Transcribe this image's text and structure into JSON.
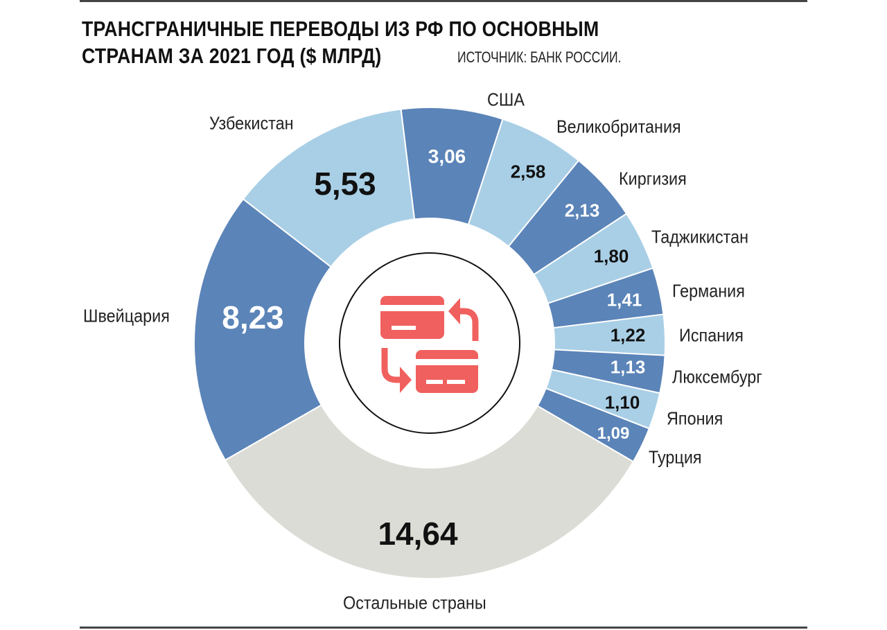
{
  "chart_data": {
    "type": "pie",
    "donut": true,
    "title": "ТРАНСГРАНИЧНЫЕ ПЕРЕВОДЫ ИЗ РФ ПО ОСНОВНЫМ СТРАНАМ ЗА 2021 ГОД ($ МЛРД)",
    "title_line1": "ТРАНСГРАНИЧНЫЕ ПЕРЕВОДЫ ИЗ РФ ПО ОСНОВНЫМ",
    "title_line2": "СТРАНАМ ЗА 2021 ГОД ($ МЛРД)",
    "source": "ИСТОЧНИК: БАНК РОССИИ.",
    "slices": [
      {
        "label": "США",
        "value": 3.06,
        "value_label": "3,06",
        "color": "#5b84b8"
      },
      {
        "label": "Великобритания",
        "value": 2.58,
        "value_label": "2,58",
        "color": "#a9cfe6"
      },
      {
        "label": "Киргизия",
        "value": 2.13,
        "value_label": "2,13",
        "color": "#5b84b8"
      },
      {
        "label": "Таджикистан",
        "value": 1.8,
        "value_label": "1,80",
        "color": "#a9cfe6"
      },
      {
        "label": "Германия",
        "value": 1.41,
        "value_label": "1,41",
        "color": "#5b84b8"
      },
      {
        "label": "Испания",
        "value": 1.22,
        "value_label": "1,22",
        "color": "#a9cfe6"
      },
      {
        "label": "Люксембург",
        "value": 1.13,
        "value_label": "1,13",
        "color": "#5b84b8"
      },
      {
        "label": "Япония",
        "value": 1.1,
        "value_label": "1,10",
        "color": "#a9cfe6"
      },
      {
        "label": "Турция",
        "value": 1.09,
        "value_label": "1,09",
        "color": "#5b84b8"
      },
      {
        "label": "Остальные страны",
        "value": 14.64,
        "value_label": "14,64",
        "color": "#dcdcd6"
      },
      {
        "label": "Швейцария",
        "value": 8.23,
        "value_label": "8,23",
        "color": "#5b84b8"
      },
      {
        "label": "Узбекистан",
        "value": 5.53,
        "value_label": "5,53",
        "color": "#a9cfe6"
      }
    ],
    "center_icon": "card-transfer-icon",
    "icon_color": "#f0605e"
  }
}
